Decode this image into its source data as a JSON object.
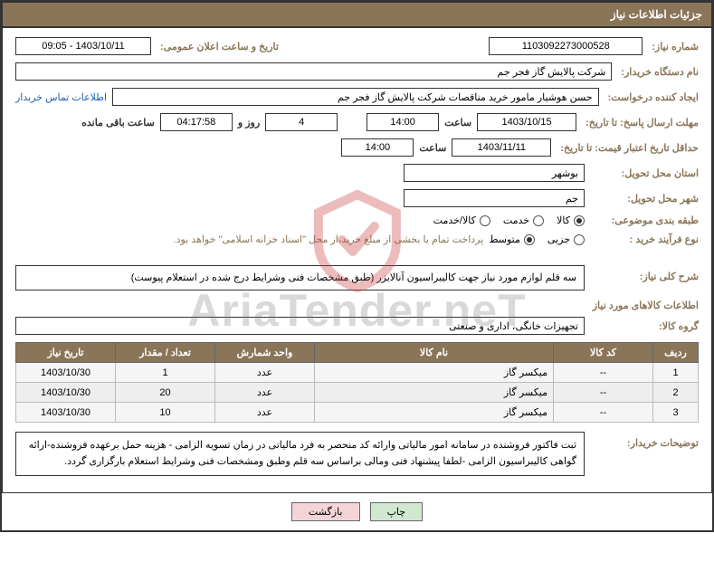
{
  "header": {
    "title": "جزئیات اطلاعات نیاز"
  },
  "fields": {
    "need_no_label": "شماره نیاز:",
    "need_no": "1103092273000528",
    "announce_label": "تاریخ و ساعت اعلان عمومی:",
    "announce_val": "1403/10/11 - 09:05",
    "buyer_org_label": "نام دستگاه خریدار:",
    "buyer_org": "شرکت پالایش گاز فجر جم",
    "requester_label": "ایجاد کننده درخواست:",
    "requester": "حسن هوشیار مامور خرید مناقصات شرکت پالایش گاز فجر جم",
    "contact_link": "اطلاعات تماس خریدار",
    "deadline_send_label": "مهلت ارسال پاسخ: تا تاریخ:",
    "deadline_send_date": "1403/10/15",
    "hour_label": "ساعت",
    "deadline_send_hour": "14:00",
    "days_remaining": "4",
    "days_word": "روز و",
    "time_remaining": "04:17:58",
    "remaining_label": "ساعت باقی مانده",
    "min_valid_label": "حداقل تاریخ اعتبار قیمت: تا تاریخ:",
    "min_valid_date": "1403/11/11",
    "min_valid_hour": "14:00",
    "province_label": "استان محل تحویل:",
    "province": "بوشهر",
    "city_label": "شهر محل تحویل:",
    "city": "جم",
    "category_label": "طبقه بندی موضوعی:",
    "radio_kala": "کالا",
    "radio_khadamat": "خدمت",
    "radio_kalakhadamat": "کالا/خدمت",
    "purchase_type_label": "نوع فرآیند خرید :",
    "radio_jozi": "جزیی",
    "radio_motavaset": "متوسط",
    "purchase_note": "پرداخت تمام یا بخشی از مبلغ خرید،از محل \"اسناد خزانه اسلامی\" خواهد بود.",
    "need_desc_label": "شرح کلی نیاز:",
    "need_desc": "سه قلم لوازم مورد نیاز جهت کالیبراسیون آنالایزر (طبق مشخصات فنی وشرایط درج شده در استعلام پیوست)",
    "goods_info_title": "اطلاعات کالاهای مورد نیاز",
    "goods_group_label": "گروه کالا:",
    "goods_group": "تجهیزات خانگی، اداری و صنعتی",
    "buyer_notes_label": "توضیحات خریدار:",
    "buyer_notes": "ثبت فاکتور فروشنده در سامانه امور مالیاتی وارائه کد منحصر به فرد مالیاتی در زمان تسویه الزامی - هزینه حمل برعهده فروشنده-ارائه گواهی کالیبراسیون الزامی -لطفا پیشنهاد فنی ومالی براساس سه قلم وطبق ومشخصات فنی وشرایط استعلام بارگزاری گردد."
  },
  "table": {
    "headers": {
      "row": "ردیف",
      "code": "کد کالا",
      "name": "نام کالا",
      "unit": "واحد شمارش",
      "qty": "تعداد / مقدار",
      "date": "تاریخ نیاز"
    },
    "rows": [
      {
        "n": "1",
        "code": "--",
        "name": "میکسر گاز",
        "unit": "عدد",
        "qty": "1",
        "date": "1403/10/30"
      },
      {
        "n": "2",
        "code": "--",
        "name": "میکسر گاز",
        "unit": "عدد",
        "qty": "20",
        "date": "1403/10/30"
      },
      {
        "n": "3",
        "code": "--",
        "name": "میکسر گاز",
        "unit": "عدد",
        "qty": "10",
        "date": "1403/10/30"
      }
    ]
  },
  "buttons": {
    "print": "چاپ",
    "back": "بازگشت"
  },
  "watermark": {
    "text": "AriaTender.neT"
  },
  "colors": {
    "brand": "#8a7558",
    "border": "#333333"
  }
}
